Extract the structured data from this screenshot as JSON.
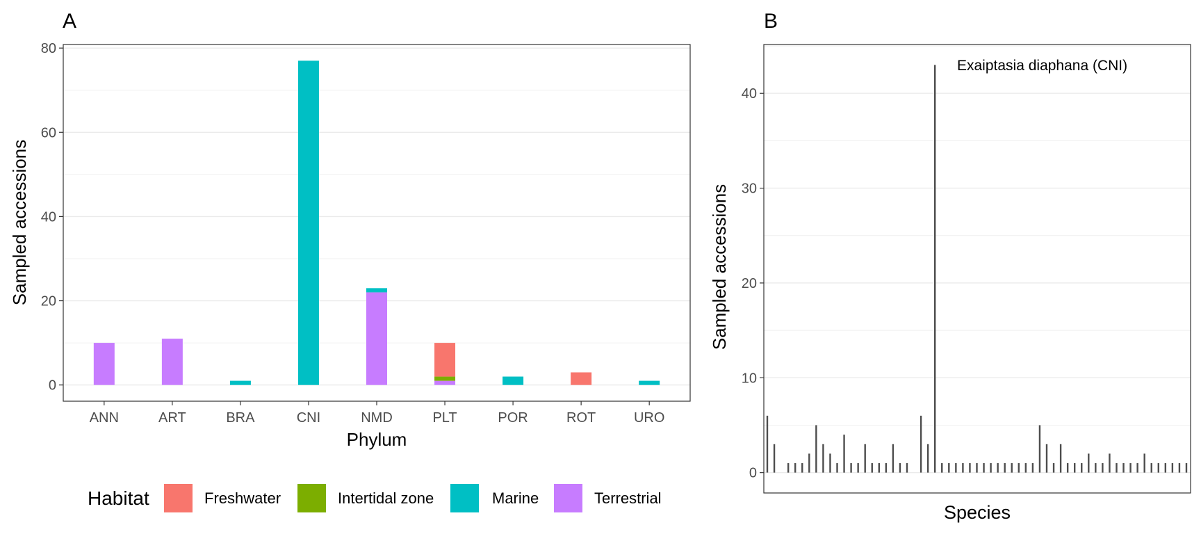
{
  "panels": {
    "a_tag": "A",
    "b_tag": "B"
  },
  "legend": {
    "title": "Habitat",
    "items": [
      {
        "label": "Freshwater",
        "color": "#F8766D"
      },
      {
        "label": "Intertidal zone",
        "color": "#7CAE00"
      },
      {
        "label": "Marine",
        "color": "#00BFC4"
      },
      {
        "label": "Terrestrial",
        "color": "#C77CFF"
      }
    ]
  },
  "chart_data": [
    {
      "type": "bar",
      "stacked": true,
      "categories": [
        "ANN",
        "ART",
        "BRA",
        "CNI",
        "NMD",
        "PLT",
        "POR",
        "ROT",
        "URO"
      ],
      "series": [
        {
          "name": "Terrestrial",
          "color": "#C77CFF",
          "values": [
            10,
            11,
            0,
            0,
            22,
            1,
            0,
            0,
            0
          ]
        },
        {
          "name": "Intertidal zone",
          "color": "#7CAE00",
          "values": [
            0,
            0,
            0,
            0,
            0,
            1,
            0,
            0,
            0
          ]
        },
        {
          "name": "Marine",
          "color": "#00BFC4",
          "values": [
            0,
            0,
            1,
            77,
            1,
            0,
            2,
            0,
            1
          ]
        },
        {
          "name": "Freshwater",
          "color": "#F8766D",
          "values": [
            0,
            0,
            0,
            0,
            0,
            8,
            0,
            3,
            0
          ]
        }
      ],
      "xlabel": "Phylum",
      "ylabel": "Sampled accessions",
      "ylim": [
        -3.85,
        80.85
      ],
      "yticks": [
        0,
        20,
        40,
        60,
        80
      ],
      "grid": true,
      "legend_position": "bottom"
    },
    {
      "type": "bar",
      "style": "lollipop-segments",
      "values": [
        6,
        3,
        0,
        1,
        1,
        1,
        2,
        5,
        3,
        2,
        1,
        4,
        1,
        1,
        3,
        1,
        1,
        1,
        3,
        1,
        1,
        0,
        6,
        3,
        43,
        1,
        1,
        1,
        1,
        1,
        1,
        1,
        1,
        1,
        1,
        1,
        1,
        1,
        1,
        5,
        3,
        1,
        3,
        1,
        1,
        1,
        2,
        1,
        1,
        2,
        1,
        1,
        1,
        1,
        2,
        1,
        1,
        1,
        1,
        1,
        1
      ],
      "annotation": "Exaiptasia diaphana (CNI)",
      "annotation_index": 24,
      "xlabel": "Species",
      "ylabel": "Sampled accessions",
      "ylim": [
        -2.15,
        45.15
      ],
      "yticks": [
        0,
        10,
        20,
        30,
        40
      ],
      "grid": true
    }
  ]
}
